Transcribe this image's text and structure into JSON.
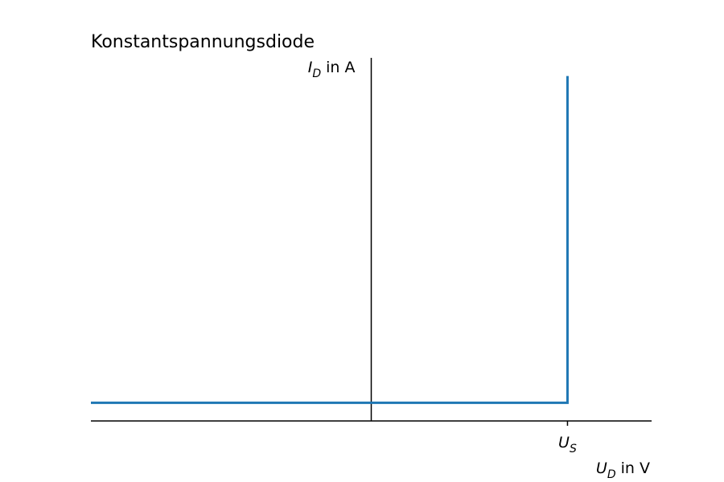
{
  "chart_data": {
    "type": "line",
    "title": "Konstantspannungsdiode",
    "xlabel": {
      "main": "U",
      "sub": "D",
      "rest": " in V"
    },
    "ylabel": {
      "main": "I",
      "sub": "D",
      "rest": " in A"
    },
    "xlim": [
      -1,
      1
    ],
    "ylim": [
      0,
      1
    ],
    "xticks": [
      {
        "value": 0.7,
        "main": "U",
        "sub": "S"
      }
    ],
    "grid": false,
    "series": [
      {
        "color": "#1f77b4",
        "x": [
          -1,
          0.7,
          0.7
        ],
        "y": [
          0.05,
          0.05,
          0.95
        ]
      }
    ],
    "spine_color": "#000000"
  }
}
